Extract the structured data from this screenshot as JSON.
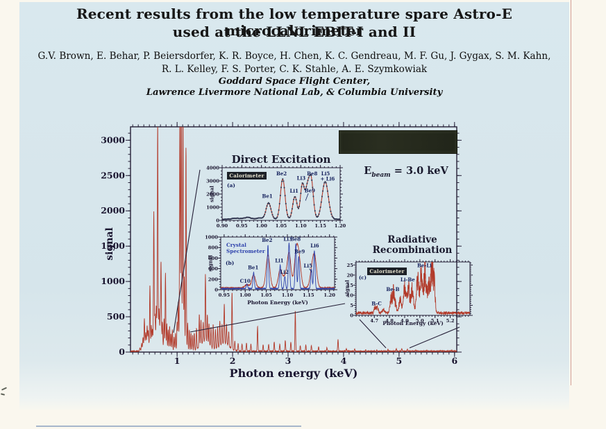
{
  "slide": {
    "title_line1": "Recent results from the low temperature spare Astro-E microcalorimeter",
    "title_line2": "used at the LLNL EBIT-I and II",
    "authors_line1": "G.V. Brown, E. Behar, P. Beiersdorfer, K. R. Boyce, H. Chen, K. C. Gendreau, M. F. Gu, J. Gygax, S. M. Kahn,",
    "authors_line2": "R. L. Kelley,  F. S. Porter,  C. K. Stahle,  A. E. Szymkowiak",
    "affiliation_line1": "Goddard Space Flight Center,",
    "affiliation_line2": "Lawrence Livermore National Lab, & Columbia University"
  },
  "figure": {
    "direct_excitation_title": "Direct Excitation",
    "ebeam": {
      "symbol": "E",
      "subscript": "beam",
      "value": "= 3.0 keV"
    },
    "rr_title_line1": "Radiative",
    "rr_title_line2": "Recombination",
    "callout_lines": [
      [
        250,
        480,
        288,
        245
      ],
      [
        274,
        479,
        497,
        438
      ],
      [
        518,
        461,
        556,
        502
      ],
      [
        590,
        502,
        662,
        472
      ]
    ]
  },
  "colors": {
    "slide_bg": "#d6e5eb",
    "page_bg": "#faf7ee",
    "spectrum_red": "#b23a2a",
    "crystal_blue": "#2f43ac",
    "axis_dark": "#241e36",
    "label_navy": "#14205c",
    "marker_dark": "#2e3550",
    "legend_bg": "#1d2128",
    "legend_text": "#e8e4d0",
    "banner_bg": "#23271b"
  },
  "chart_data": [
    {
      "id": "main_ebit_spectrum",
      "type": "line",
      "xlabel": "Photon energy (keV)",
      "ylabel": "signal",
      "xlim": [
        0.16,
        6.04
      ],
      "ylim": [
        0,
        3190
      ],
      "xticks": [
        "1",
        "2",
        "3",
        "4",
        "5",
        "6"
      ],
      "yticks": [
        "0",
        "500",
        "1000",
        "1500",
        "2000",
        "2500",
        "3000"
      ],
      "xminor": 0.1,
      "yminor": 100,
      "series": [
        {
          "name": "microcalorimeter spectrum",
          "color": "#b23a2a",
          "sigma": 0.006,
          "baseline": 6,
          "noise": 14,
          "samples": 2800,
          "width": 0.9,
          "peaks": [
            [
              0.33,
              40
            ],
            [
              0.36,
              90
            ],
            [
              0.385,
              150
            ],
            [
              0.41,
              390
            ],
            [
              0.435,
              160
            ],
            [
              0.46,
              250
            ],
            [
              0.48,
              200
            ],
            [
              0.51,
              870
            ],
            [
              0.535,
              300
            ],
            [
              0.555,
              230
            ],
            [
              0.58,
              1850
            ],
            [
              0.6,
              350
            ],
            [
              0.625,
              420
            ],
            [
              0.65,
              2970
            ],
            [
              0.675,
              380
            ],
            [
              0.695,
              250
            ],
            [
              0.71,
              1110
            ],
            [
              0.735,
              320
            ],
            [
              0.765,
              420
            ],
            [
              0.79,
              1090
            ],
            [
              0.815,
              380
            ],
            [
              0.84,
              300
            ],
            [
              0.865,
              350
            ],
            [
              0.89,
              250
            ],
            [
              0.915,
              300
            ],
            [
              0.945,
              200
            ],
            [
              0.97,
              250
            ],
            [
              1.0,
              380
            ],
            [
              1.02,
              600
            ],
            [
              1.05,
              3080
            ],
            [
              1.075,
              3260
            ],
            [
              1.105,
              3100
            ],
            [
              1.13,
              900
            ],
            [
              1.16,
              2850
            ],
            [
              1.19,
              400
            ],
            [
              1.22,
              300
            ],
            [
              1.25,
              250
            ],
            [
              1.28,
              230
            ],
            [
              1.31,
              250
            ],
            [
              1.35,
              300
            ],
            [
              1.4,
              460
            ],
            [
              1.43,
              350
            ],
            [
              1.47,
              280
            ],
            [
              1.51,
              950
            ],
            [
              1.545,
              400
            ],
            [
              1.575,
              300
            ],
            [
              1.61,
              280
            ],
            [
              1.65,
              350
            ],
            [
              1.69,
              280
            ],
            [
              1.73,
              300
            ],
            [
              1.77,
              350
            ],
            [
              1.81,
              280
            ],
            [
              1.85,
              560
            ],
            [
              1.89,
              280
            ],
            [
              1.93,
              200
            ],
            [
              1.99,
              800
            ],
            [
              2.04,
              130
            ],
            [
              2.1,
              110
            ],
            [
              2.17,
              100
            ],
            [
              2.25,
              110
            ],
            [
              2.33,
              100
            ],
            [
              2.45,
              350
            ],
            [
              2.55,
              90
            ],
            [
              2.65,
              100
            ],
            [
              2.75,
              130
            ],
            [
              2.85,
              100
            ],
            [
              2.95,
              150
            ],
            [
              3.05,
              130
            ],
            [
              3.13,
              570
            ],
            [
              3.22,
              80
            ],
            [
              3.32,
              90
            ],
            [
              3.42,
              80
            ],
            [
              3.55,
              60
            ],
            [
              3.7,
              50
            ],
            [
              3.9,
              170
            ],
            [
              4.05,
              30
            ],
            [
              4.2,
              25
            ],
            [
              4.4,
              20
            ],
            [
              4.6,
              18
            ],
            [
              4.8,
              22
            ],
            [
              4.95,
              32
            ],
            [
              5.05,
              35
            ],
            [
              5.15,
              25
            ],
            [
              5.3,
              15
            ],
            [
              5.5,
              12
            ],
            [
              5.75,
              10
            ],
            [
              5.95,
              8
            ],
            [
              0.65,
              250,
              0.06
            ],
            [
              1.08,
              420,
              0.035
            ],
            [
              1.5,
              140,
              0.08
            ],
            [
              1.85,
              110,
              0.09
            ],
            [
              0.45,
              110,
              0.05
            ]
          ]
        }
      ]
    },
    {
      "id": "direct_excitation_calorimeter",
      "type": "line",
      "panel": "(a)",
      "legend": "Calorimeter",
      "ylabel": "signal",
      "xlim": [
        0.9,
        1.2
      ],
      "ylim": [
        0,
        4000
      ],
      "xticks": [
        "0.90",
        "0.95",
        "1.00",
        "1.05",
        "1.10",
        "1.15",
        "1.20"
      ],
      "yticks": [
        "0",
        "1000",
        "2000",
        "3000",
        "4000"
      ],
      "xminor": 0.01,
      "yminor": 250,
      "series": [
        {
          "name": "calorimeter",
          "color": "#b23a2a",
          "sigma": 0.006,
          "baseline": 70,
          "noise": 30,
          "samples": 600,
          "width": 1.1,
          "markers": true,
          "peaks": [
            [
              0.935,
              80,
              0.01
            ],
            [
              0.965,
              140,
              0.009
            ],
            [
              0.995,
              100,
              0.007
            ],
            [
              1.018,
              1250,
              0.0062
            ],
            [
              1.054,
              3060,
              0.0058
            ],
            [
              1.085,
              1720,
              0.0056
            ],
            [
              1.104,
              2620,
              0.005
            ],
            [
              1.116,
              1950,
              0.005
            ],
            [
              1.126,
              3060,
              0.0056
            ],
            [
              1.162,
              2850,
              0.008
            ]
          ]
        }
      ],
      "labels": [
        {
          "t": "Be1",
          "x": 1.015,
          "y": 1700
        },
        {
          "t": "Be2",
          "x": 1.051,
          "y": 3420
        },
        {
          "t": "Li1",
          "x": 1.083,
          "y": 2100
        },
        {
          "t": "Li3",
          "x": 1.101,
          "y": 3080
        },
        {
          "t": "Be9",
          "x": 1.123,
          "y": 2120
        },
        {
          "t": "Be8",
          "x": 1.129,
          "y": 3420
        },
        {
          "t": "Li5",
          "x": 1.163,
          "y": 3420
        },
        {
          "t": "+ Li6",
          "x": 1.168,
          "y": 3020
        }
      ],
      "arrows": [
        [
          1.119,
          2050,
          1.112,
          1500
        ]
      ]
    },
    {
      "id": "direct_excitation_crystal_spectrometer",
      "type": "line",
      "panel": "(b)",
      "legend_line1": "Crystal",
      "legend_line2": "Spectrometer",
      "xlabel": "Photon Energy (keV)",
      "ylabel": "signal",
      "xlim": [
        0.942,
        1.212
      ],
      "ylim": [
        0,
        1000
      ],
      "xticks": [
        "0.95",
        "1.00",
        "1.05",
        "1.10",
        "1.15",
        "1.20"
      ],
      "yticks": [
        "0",
        "200",
        "400",
        "600",
        "800",
        "1000"
      ],
      "xminor": 0.01,
      "yminor": 50,
      "series": [
        {
          "name": "calorimeter overlay",
          "color": "#b23a2a",
          "sigma": 0.0045,
          "baseline": 30,
          "noise": 14,
          "samples": 1400,
          "width": 0.9,
          "peaks": [
            [
              1.004,
              60
            ],
            [
              1.02,
              240
            ],
            [
              1.054,
              620
            ],
            [
              1.083,
              340
            ],
            [
              1.094,
              180
            ],
            [
              1.104,
              650
            ],
            [
              1.121,
              640
            ],
            [
              1.128,
              470
            ],
            [
              1.158,
              300
            ],
            [
              1.165,
              540
            ]
          ]
        },
        {
          "name": "crystal spectrometer",
          "color": "#2f43ac",
          "sigma": 0.0016,
          "baseline": 15,
          "noise": 12,
          "samples": 1400,
          "width": 0.9,
          "peaks": [
            [
              1.004,
              85
            ],
            [
              1.02,
              310
            ],
            [
              1.054,
              820
            ],
            [
              1.083,
              450
            ],
            [
              1.094,
              230
            ],
            [
              1.104,
              870
            ],
            [
              1.12,
              850
            ],
            [
              1.127,
              610
            ],
            [
              1.157,
              370
            ],
            [
              1.164,
              720
            ]
          ]
        }
      ],
      "labels": [
        {
          "t": "C10",
          "x": 1.0,
          "y": 130
        },
        {
          "t": "Be1",
          "x": 1.019,
          "y": 390
        },
        {
          "t": "Be2",
          "x": 1.052,
          "y": 905
        },
        {
          "t": "Li1",
          "x": 1.081,
          "y": 520
        },
        {
          "t": "Li2",
          "x": 1.093,
          "y": 300
        },
        {
          "t": "Li3",
          "x": 1.101,
          "y": 930
        },
        {
          "t": "Be8",
          "x": 1.119,
          "y": 930
        },
        {
          "t": "Be9",
          "x": 1.129,
          "y": 690
        },
        {
          "t": "Li5",
          "x": 1.149,
          "y": 420
        },
        {
          "t": "Li6",
          "x": 1.165,
          "y": 800
        }
      ],
      "arrows": [
        [
          1.152,
          400,
          1.158,
          330
        ]
      ]
    },
    {
      "id": "radiative_recombination_calorimeter",
      "type": "line",
      "panel": "(c)",
      "legend": "Calorimeter",
      "xlabel": "Photon Energy (keV)",
      "ylabel": "signal",
      "xlim": [
        4.58,
        5.33
      ],
      "ylim": [
        0,
        26.5
      ],
      "xticks": [
        "4.7",
        "4.8",
        "4.9",
        "5.0",
        "5.1",
        "5.2"
      ],
      "yticks": [
        "0",
        "5",
        "10",
        "15",
        "20",
        "25"
      ],
      "xminor": 0.02,
      "yminor": 1,
      "series": [
        {
          "name": "calorimeter",
          "color": "#b23a2a",
          "sigma": 0.012,
          "baseline": 0.5,
          "noise": 1.4,
          "jitter": 0.4,
          "samples": 800,
          "width": 0.9,
          "peaks": [
            [
              4.705,
              2.5,
              0.006
            ],
            [
              4.72,
              3,
              0.006
            ],
            [
              4.76,
              1.5,
              0.008
            ],
            [
              4.81,
              7,
              0.007
            ],
            [
              4.826,
              9.5,
              0.006
            ],
            [
              4.84,
              4,
              0.006
            ],
            [
              4.87,
              6,
              0.008
            ],
            [
              4.9,
              12,
              0.008
            ],
            [
              4.925,
              13,
              0.008
            ],
            [
              4.95,
              11,
              0.008
            ],
            [
              4.985,
              16,
              0.008
            ],
            [
              5.01,
              19.5,
              0.008
            ],
            [
              5.035,
              20.5,
              0.008
            ],
            [
              5.06,
              15,
              0.008
            ],
            [
              5.08,
              20.5,
              0.007
            ],
            [
              5.095,
              14,
              0.006
            ]
          ]
        }
      ],
      "labels": [
        {
          "t": "B-C",
          "x": 4.715,
          "y": 5
        },
        {
          "t": "Be-B",
          "x": 4.822,
          "y": 12
        },
        {
          "t": "Li-Be",
          "x": 4.92,
          "y": 16.8
        },
        {
          "t": "Be-Li",
          "x": 5.03,
          "y": 24
        }
      ]
    }
  ]
}
